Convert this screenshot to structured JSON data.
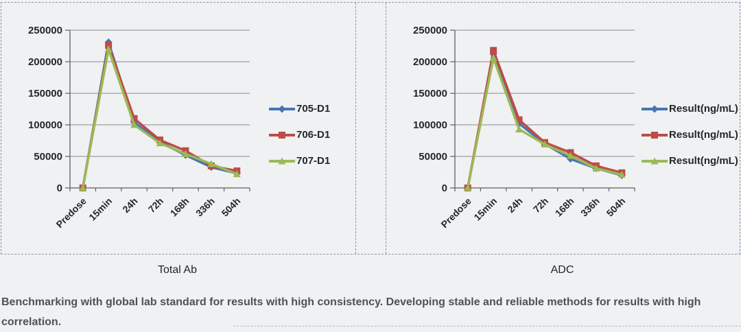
{
  "colors": {
    "background": "#EFF1F3",
    "dashed_border": "#8796A8",
    "gridline": "#8A8A8A",
    "axis": "#5E5E5E",
    "series_blue": "#4876B4",
    "series_red": "#BE4B48",
    "series_green": "#9ABA56",
    "caption_text": "#4E5256"
  },
  "caption": {
    "text": "Benchmarking with global lab standard for results with high consistency. Developing stable and reliable methods for results with high correlation."
  },
  "chart_data": [
    {
      "type": "line",
      "title": "Total Ab",
      "categories": [
        "Predose",
        "15min",
        "24h",
        "72h",
        "168h",
        "336h",
        "504h"
      ],
      "series": [
        {
          "name": "705-D1",
          "marker": "diamond",
          "color": "#4876B4",
          "values": [
            0,
            231000,
            104000,
            73000,
            52000,
            33000,
            23000
          ]
        },
        {
          "name": "706-D1",
          "marker": "square",
          "color": "#BE4B48",
          "values": [
            0,
            226000,
            110000,
            76000,
            59000,
            35000,
            27000
          ]
        },
        {
          "name": "707-D1",
          "marker": "triangle",
          "color": "#9ABA56",
          "values": [
            0,
            220000,
            100000,
            71000,
            54000,
            38000,
            22000
          ]
        }
      ],
      "ylim": [
        0,
        250000
      ],
      "ytick_interval": 50000,
      "ytick_labels": [
        "0",
        "50000",
        "100000",
        "150000",
        "200000",
        "250000"
      ],
      "grid": true,
      "legend_position": "right",
      "xlabel": "",
      "ylabel": ""
    },
    {
      "type": "line",
      "title": "ADC",
      "categories": [
        "Predose",
        "15min",
        "24h",
        "72h",
        "168h",
        "336h",
        "504h"
      ],
      "series": [
        {
          "name": "Result(ng/mL)",
          "marker": "diamond",
          "color": "#4876B4",
          "values": [
            0,
            212000,
            102000,
            70000,
            46000,
            31000,
            20000
          ]
        },
        {
          "name": "Result(ng/mL)",
          "marker": "square",
          "color": "#BE4B48",
          "values": [
            0,
            218000,
            108000,
            72000,
            56000,
            35000,
            24000
          ]
        },
        {
          "name": "Result(ng/mL)",
          "marker": "triangle",
          "color": "#9ABA56",
          "values": [
            0,
            206000,
            93000,
            69000,
            51000,
            31000,
            21000
          ]
        }
      ],
      "ylim": [
        0,
        250000
      ],
      "ytick_interval": 50000,
      "ytick_labels": [
        "0",
        "50000",
        "100000",
        "150000",
        "200000",
        "250000"
      ],
      "grid": true,
      "legend_position": "right",
      "xlabel": "",
      "ylabel": ""
    }
  ]
}
